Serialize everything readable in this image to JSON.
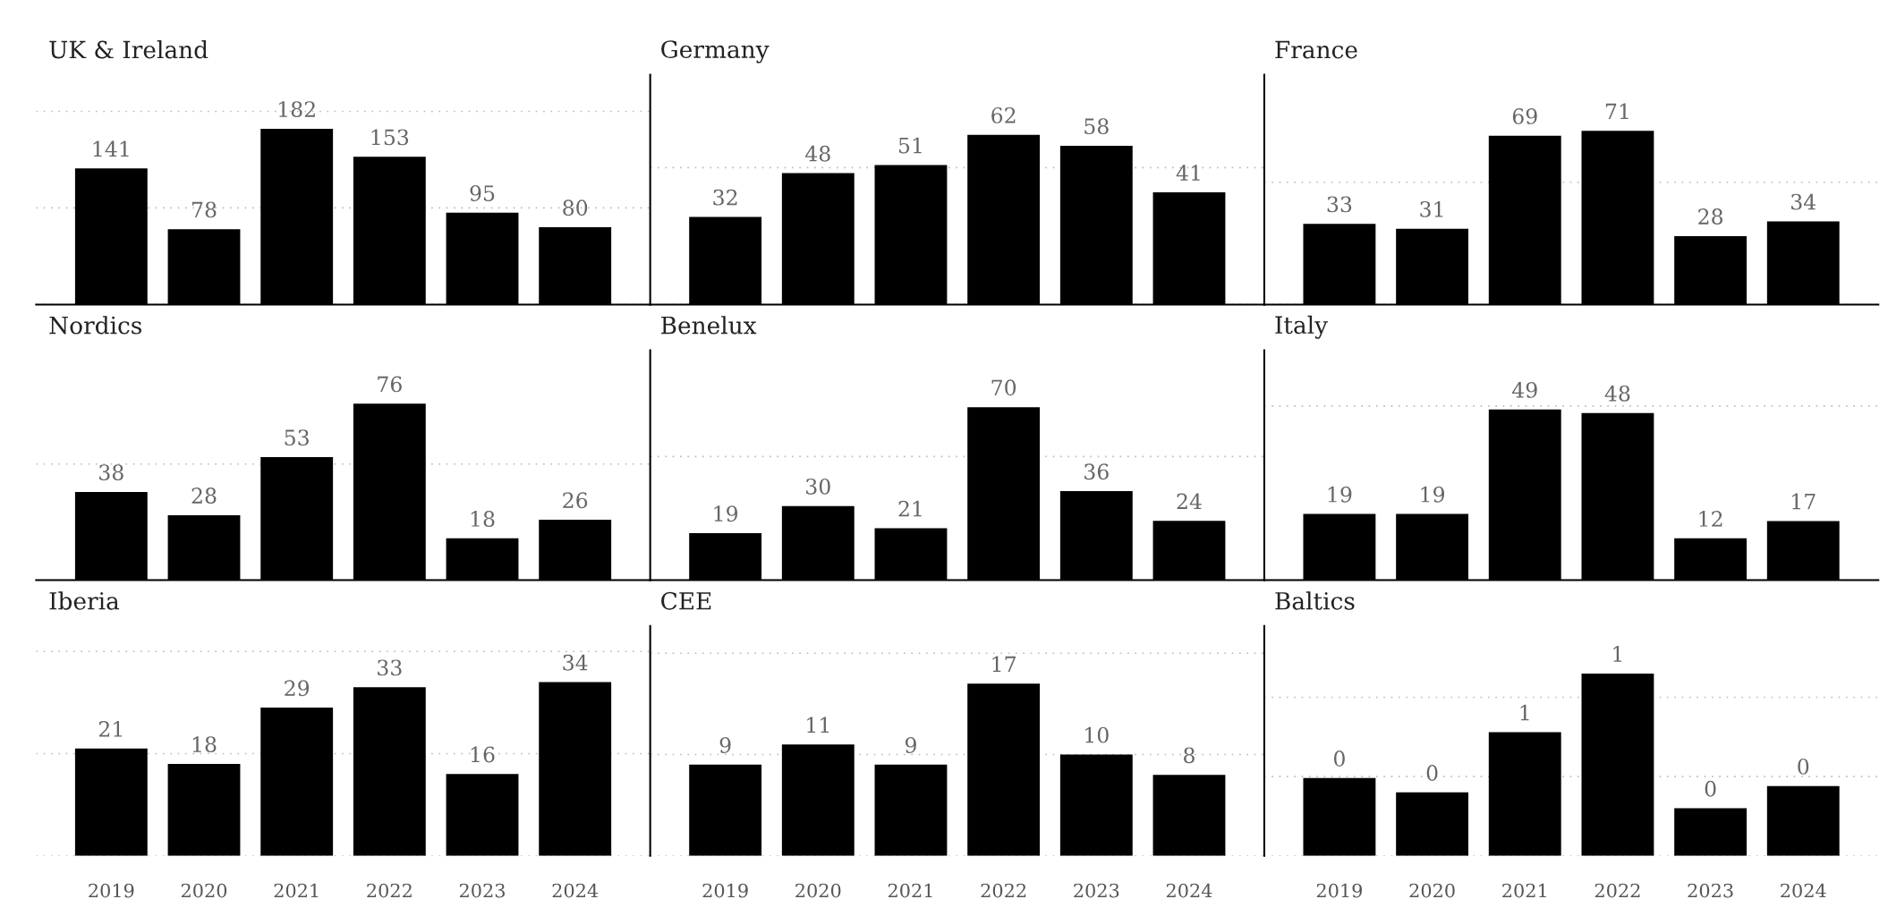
{
  "chart_data": [
    {
      "type": "bar",
      "title": "UK & Ireland",
      "categories": [
        "2019",
        "2020",
        "2021",
        "2022",
        "2023",
        "2024"
      ],
      "values": [
        141,
        78,
        182,
        153,
        95,
        80
      ],
      "color": "#000000",
      "data_labels": true,
      "ylim": [
        0,
        238
      ],
      "yticks": [
        {
          "value": 0,
          "label": null
        },
        {
          "value": 100,
          "label": null
        },
        {
          "value": 200,
          "label": null
        }
      ],
      "grid": "y",
      "tick_labels": false
    },
    {
      "type": "bar",
      "title": "Germany",
      "categories": [
        "2019",
        "2020",
        "2021",
        "2022",
        "2023",
        "2024"
      ],
      "values": [
        32,
        48,
        51,
        62,
        58,
        41
      ],
      "color": "#000000",
      "data_labels": true,
      "ylim": [
        0,
        84
      ],
      "yticks": [
        {
          "value": 0,
          "label": null
        },
        {
          "value": 50,
          "label": null
        }
      ],
      "grid": "y",
      "tick_labels": false
    },
    {
      "type": "bar",
      "title": "France",
      "categories": [
        "2019",
        "2020",
        "2021",
        "2022",
        "2023",
        "2024"
      ],
      "values": [
        33,
        31,
        69,
        71,
        28,
        34
      ],
      "color": "#000000",
      "data_labels": true,
      "ylim": [
        0,
        94
      ],
      "yticks": [
        {
          "value": 0,
          "label": null
        },
        {
          "value": 50,
          "label": null
        }
      ],
      "grid": "y",
      "tick_labels": false
    },
    {
      "type": "bar",
      "title": "Nordics",
      "categories": [
        "2019",
        "2020",
        "2021",
        "2022",
        "2023",
        "2024"
      ],
      "values": [
        38,
        28,
        53,
        76,
        18,
        26
      ],
      "color": "#000000",
      "data_labels": true,
      "ylim": [
        0,
        99
      ],
      "yticks": [
        {
          "value": 0,
          "label": null
        },
        {
          "value": 50,
          "label": null
        }
      ],
      "grid": "y",
      "tick_labels": false
    },
    {
      "type": "bar",
      "title": "Benelux",
      "categories": [
        "2019",
        "2020",
        "2021",
        "2022",
        "2023",
        "2024"
      ],
      "values": [
        19,
        30,
        21,
        70,
        36,
        24
      ],
      "color": "#000000",
      "data_labels": true,
      "ylim": [
        0,
        93
      ],
      "yticks": [
        {
          "value": 0,
          "label": null
        },
        {
          "value": 50,
          "label": null
        }
      ],
      "grid": "y",
      "tick_labels": false
    },
    {
      "type": "bar",
      "title": "Italy",
      "categories": [
        "2019",
        "2020",
        "2021",
        "2022",
        "2023",
        "2024"
      ],
      "values": [
        19,
        19,
        49,
        48,
        12,
        17
      ],
      "color": "#000000",
      "data_labels": true,
      "ylim": [
        0,
        66
      ],
      "yticks": [
        {
          "value": 0,
          "label": null
        },
        {
          "value": 50,
          "label": null
        }
      ],
      "grid": "y",
      "tick_labels": false
    },
    {
      "type": "bar",
      "title": "Iberia",
      "categories": [
        "2019",
        "2020",
        "2021",
        "2022",
        "2023",
        "2024"
      ],
      "values": [
        21,
        18,
        29,
        33,
        16,
        34
      ],
      "color": "#000000",
      "data_labels": true,
      "ylim": [
        0,
        45
      ],
      "yticks": [
        {
          "value": 0,
          "label": null
        },
        {
          "value": 20,
          "label": null
        },
        {
          "value": 40,
          "label": null
        }
      ],
      "grid": "y",
      "tick_labels": "x"
    },
    {
      "type": "bar",
      "title": "CEE",
      "categories": [
        "2019",
        "2020",
        "2021",
        "2022",
        "2023",
        "2024"
      ],
      "values": [
        9,
        11,
        9,
        17,
        10,
        8
      ],
      "color": "#000000",
      "data_labels": true,
      "ylim": [
        0,
        22.7
      ],
      "yticks": [
        {
          "value": 0,
          "label": null
        },
        {
          "value": 10,
          "label": null
        },
        {
          "value": 20,
          "label": null
        }
      ],
      "grid": "y",
      "tick_labels": "x"
    },
    {
      "type": "bar",
      "title": "Baltics",
      "categories": [
        "2019",
        "2020",
        "2021",
        "2022",
        "2023",
        "2024"
      ],
      "values": [
        0.49,
        0.4,
        0.78,
        1.15,
        0.3,
        0.44
      ],
      "value_labels": [
        "0",
        "0",
        "1",
        "1",
        "0",
        "0"
      ],
      "color": "#000000",
      "ylim": [
        0,
        1.45
      ],
      "yticks": [
        {
          "value": 0,
          "label": null
        },
        {
          "value": 0.5,
          "label": null
        },
        {
          "value": 1,
          "label": null
        }
      ],
      "grid": "y",
      "tick_labels": "x"
    }
  ]
}
